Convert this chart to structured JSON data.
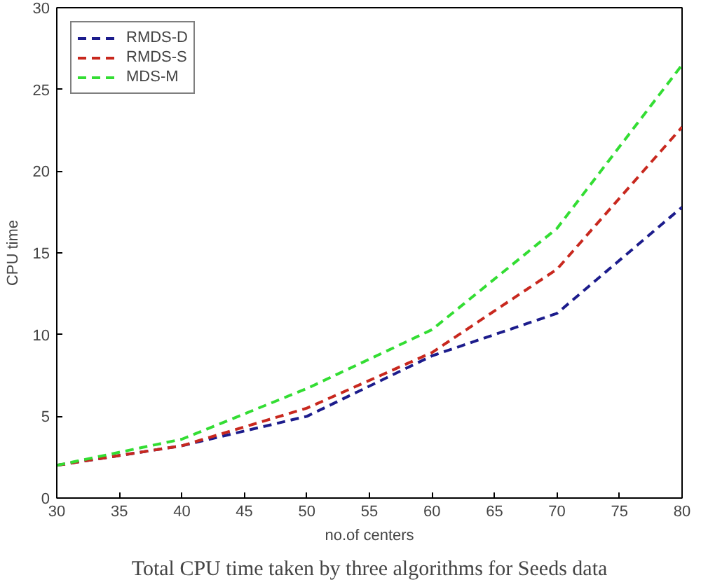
{
  "chart_data": {
    "type": "line",
    "xlabel": "no.of centers",
    "ylabel": "CPU time",
    "x": [
      30,
      40,
      50,
      60,
      70,
      80
    ],
    "series": [
      {
        "name": "RMDS-D",
        "color": "#1c1c8c",
        "values": [
          2,
          3.2,
          5,
          8.7,
          11.3,
          17.8
        ]
      },
      {
        "name": "RMDS-S",
        "color": "#c8281e",
        "values": [
          2,
          3.2,
          5.5,
          8.9,
          14,
          22.7
        ]
      },
      {
        "name": "MDS-M",
        "color": "#33dd33",
        "values": [
          2,
          3.6,
          6.7,
          10.3,
          16.5,
          26.5
        ]
      }
    ],
    "xlim": [
      30,
      80
    ],
    "ylim": [
      0,
      30
    ],
    "xticks": [
      30,
      35,
      40,
      45,
      50,
      55,
      60,
      65,
      70,
      75,
      80
    ],
    "yticks": [
      0,
      5,
      10,
      15,
      20,
      25,
      30
    ],
    "grid": false,
    "legend": "top left",
    "line_style": "dashed",
    "marker": "none",
    "annotations": [
      "Total CPU time taken by three algorithms for Seeds data"
    ]
  }
}
